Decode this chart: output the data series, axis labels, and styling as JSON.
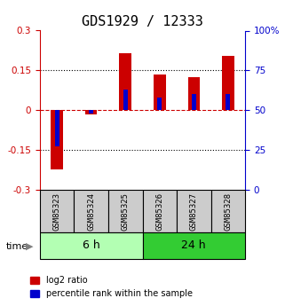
{
  "title": "GDS1929 / 12333",
  "samples": [
    "GSM85323",
    "GSM85324",
    "GSM85325",
    "GSM85326",
    "GSM85327",
    "GSM85328"
  ],
  "log2_ratio": [
    -0.225,
    -0.015,
    0.215,
    0.135,
    0.125,
    0.205
  ],
  "percentile_rank": [
    27,
    48,
    63,
    58,
    60,
    60
  ],
  "groups": [
    {
      "label": "6 h",
      "indices": [
        0,
        1,
        2
      ],
      "color": "#b3ffb3"
    },
    {
      "label": "24 h",
      "indices": [
        3,
        4,
        5
      ],
      "color": "#33cc33"
    }
  ],
  "group_light_color": "#b3ffb3",
  "group_dark_color": "#33cc33",
  "bar_color_red": "#cc0000",
  "bar_color_blue": "#0000cc",
  "ylim_left": [
    -0.3,
    0.3
  ],
  "ylim_right": [
    0,
    100
  ],
  "yticks_left": [
    -0.3,
    -0.15,
    0,
    0.15,
    0.3
  ],
  "yticks_right": [
    0,
    25,
    50,
    75,
    100
  ],
  "ytick_labels_left": [
    "-0.3",
    "-0.15",
    "0",
    "0.15",
    "0.3"
  ],
  "ytick_labels_right": [
    "0",
    "25",
    "50",
    "75",
    "100%"
  ],
  "hline_y": 0,
  "dotted_lines": [
    -0.15,
    0.15
  ],
  "bar_width": 0.35,
  "blue_bar_width": 0.12,
  "blue_bar_height": 0.03,
  "sample_box_color": "#cccccc",
  "time_label": "time",
  "legend_log2": "log2 ratio",
  "legend_pct": "percentile rank within the sample",
  "left_tick_color": "#cc0000",
  "right_tick_color": "#0000cc",
  "title_fontsize": 11,
  "tick_fontsize": 7.5,
  "legend_fontsize": 7,
  "group_label_fontsize": 9,
  "sample_label_fontsize": 6.5
}
